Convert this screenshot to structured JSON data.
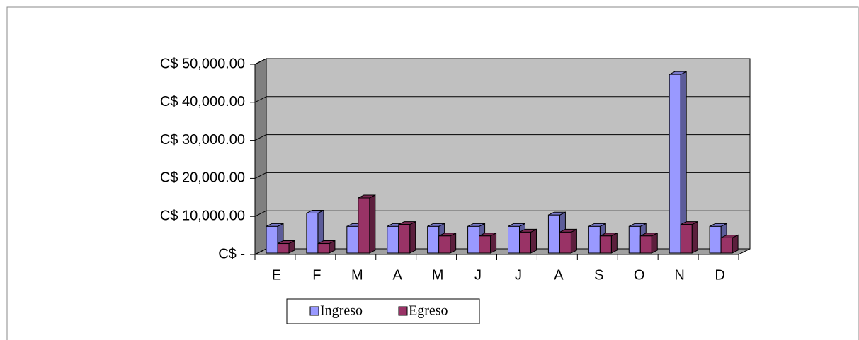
{
  "chart_data": {
    "type": "bar3d",
    "categories": [
      "E",
      "F",
      "M",
      "A",
      "M",
      "J",
      "J",
      "A",
      "S",
      "O",
      "N",
      "D"
    ],
    "series": [
      {
        "name": "Ingreso",
        "color": "#9999ff",
        "values": [
          7000,
          10500,
          7000,
          7000,
          7000,
          7000,
          7000,
          10000,
          7000,
          7000,
          47000,
          7000
        ]
      },
      {
        "name": "Egreso",
        "color": "#993366",
        "values": [
          2500,
          2500,
          14500,
          7500,
          4500,
          4500,
          5500,
          5500,
          4500,
          4500,
          7500,
          4000
        ]
      }
    ],
    "ylim": [
      0,
      50000
    ],
    "yticks": [
      {
        "value": 0,
        "label": "C$ -"
      },
      {
        "value": 10000,
        "label": "C$ 10,000.00"
      },
      {
        "value": 20000,
        "label": "C$ 20,000.00"
      },
      {
        "value": 30000,
        "label": "C$ 30,000.00"
      },
      {
        "value": 40000,
        "label": "C$ 40,000.00"
      },
      {
        "value": 50000,
        "label": "C$ 50,000.00"
      }
    ],
    "grid": true,
    "legend": "bottom"
  }
}
